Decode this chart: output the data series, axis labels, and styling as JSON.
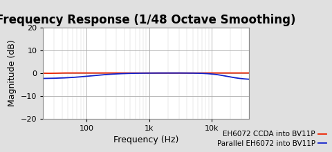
{
  "title": "Frequency Response (1/48 Octave Smoothing)",
  "xlabel": "Frequency (Hz)",
  "ylabel": "Magnitude (dB)",
  "ylim": [
    -20,
    20
  ],
  "xlim": [
    20,
    40000
  ],
  "yticks": [
    -20,
    -10,
    0,
    10,
    20
  ],
  "xticks_major": [
    100,
    1000,
    10000
  ],
  "xtick_labels": [
    "100",
    "1k",
    "10k"
  ],
  "legend1": "EH6072 CCDA into BV11P",
  "legend2": "Parallel EH6072 into BV11P",
  "color_ccda": "#EE2200",
  "color_parallel": "#1122CC",
  "bg_color": "#E0E0E0",
  "plot_bg": "#FFFFFF",
  "title_fontsize": 12,
  "label_fontsize": 9,
  "tick_fontsize": 8,
  "legend_fontsize": 7.5
}
